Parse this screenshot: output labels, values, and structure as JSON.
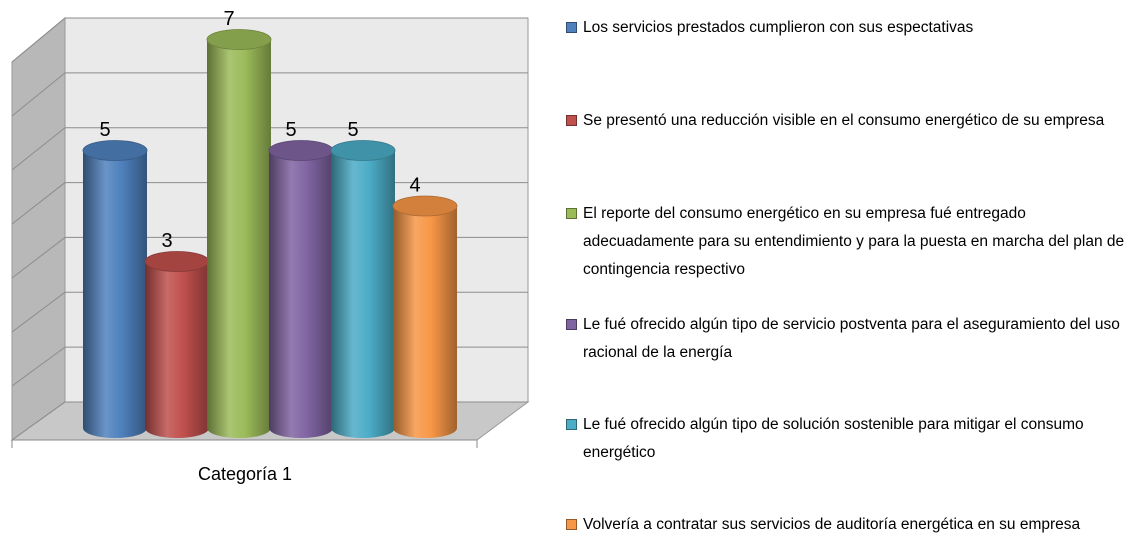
{
  "chart_data": {
    "type": "bar3d",
    "categories": [
      "Categoría 1"
    ],
    "series": [
      {
        "name": "Los servicios prestados cumplieron con sus espectativas",
        "color": "#4f81bd",
        "values": [
          5
        ]
      },
      {
        "name": "Se presentó una reducción visible en el consumo energético de su empresa",
        "color": "#c0504d",
        "values": [
          3
        ]
      },
      {
        "name": "El reporte del consumo energético en su empresa fué entregado adecuadamente para su entendimiento y para la puesta en marcha del plan de contingencia respectivo",
        "color": "#9bbb59",
        "values": [
          7
        ]
      },
      {
        "name": "Le fué ofrecido algún tipo de servicio postventa para el aseguramiento del uso racional de la energía",
        "color": "#8064a2",
        "values": [
          5
        ]
      },
      {
        "name": "Le fué ofrecido algún tipo de solución sostenible para mitigar el consumo energético",
        "color": "#4bacc6",
        "values": [
          5
        ]
      },
      {
        "name": "Volvería a contratar sus servicios de auditoría energética en su empresa",
        "color": "#f79646",
        "values": [
          4
        ]
      }
    ],
    "ylim": [
      0,
      7
    ],
    "yticks": [
      0,
      1,
      2,
      3,
      4,
      5,
      6,
      7
    ],
    "grid": true,
    "legend": "right"
  }
}
